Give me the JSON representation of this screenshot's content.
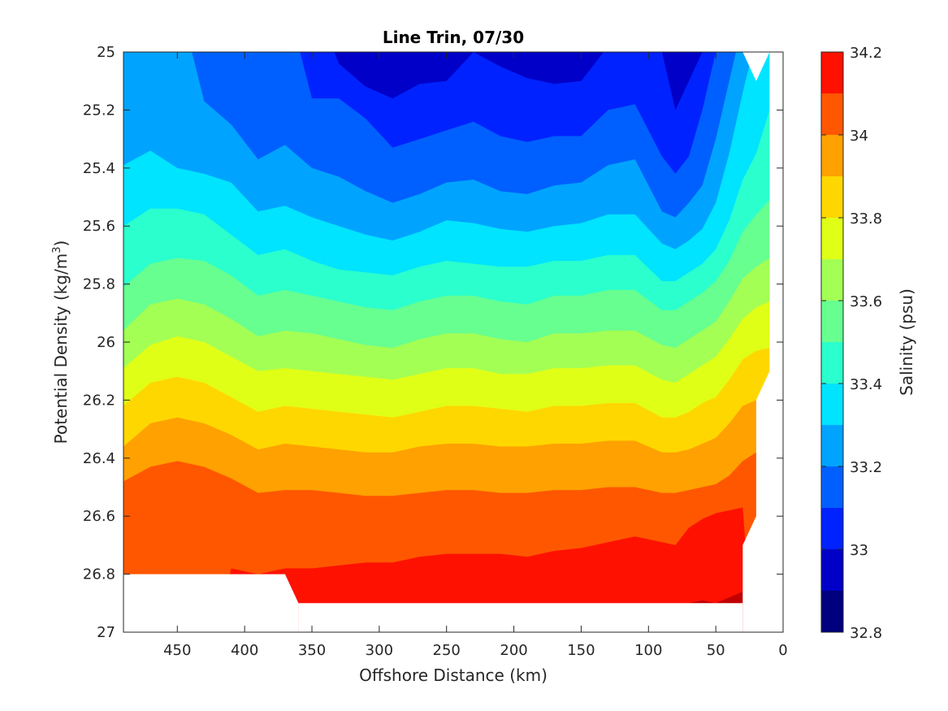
{
  "chart_data": {
    "type": "contourf",
    "title": "Line Trin, 07/30",
    "xlabel": "Offshore Distance (km)",
    "ylabel_main": "Potential Density (kg/m",
    "ylabel_sup": "3",
    "ylabel_close": ")",
    "x_range": [
      490,
      0
    ],
    "x_reversed": true,
    "y_range": [
      25,
      27
    ],
    "y_reversed": true,
    "x_ticks": [
      450,
      400,
      350,
      300,
      250,
      200,
      150,
      100,
      50,
      0
    ],
    "x_tick_labels": [
      "450",
      "400",
      "350",
      "300",
      "250",
      "200",
      "150",
      "100",
      "50",
      "0"
    ],
    "y_ticks": [
      25,
      25.2,
      25.4,
      25.6,
      25.8,
      26,
      26.2,
      26.4,
      26.6,
      26.8,
      27
    ],
    "y_tick_labels": [
      "25",
      "25.2",
      "25.4",
      "25.6",
      "25.8",
      "26",
      "26.2",
      "26.4",
      "26.6",
      "26.8",
      "27"
    ],
    "colorbar": {
      "label": "Salinity (psu)",
      "range": [
        32.8,
        34.2
      ],
      "levels": [
        32.8,
        32.9,
        33.0,
        33.1,
        33.2,
        33.3,
        33.4,
        33.5,
        33.6,
        33.7,
        33.8,
        33.9,
        34.0,
        34.1,
        34.2
      ],
      "colors": [
        "#00007f",
        "#0000c8",
        "#0022ff",
        "#0060ff",
        "#00a4ff",
        "#00e4ff",
        "#2affcd",
        "#66ff90",
        "#a3ff54",
        "#e0ff17",
        "#ffd700",
        "#ffa100",
        "#ff5700",
        "#fe1100",
        "#c00000"
      ],
      "ticks": [
        34.2,
        34,
        33.8,
        33.6,
        33.4,
        33.2,
        33,
        32.8
      ],
      "tick_labels": [
        "34.2",
        "34",
        "33.8",
        "33.6",
        "33.4",
        "33.2",
        "33",
        "32.8"
      ]
    },
    "x_stations": [
      490,
      470,
      450,
      430,
      410,
      390,
      370,
      350,
      330,
      310,
      290,
      270,
      250,
      230,
      210,
      190,
      170,
      150,
      130,
      110,
      90,
      80,
      70,
      60,
      50,
      40,
      30,
      20,
      10
    ],
    "contours": [
      {
        "level": 32.9,
        "depth": [
          24.8,
          24.8,
          24.8,
          24.8,
          24.8,
          24.8,
          24.8,
          24.8,
          24.8,
          24.8,
          24.8,
          24.8,
          24.8,
          24.8,
          24.8,
          24.8,
          24.8,
          24.8,
          24.8,
          24.8,
          24.8,
          24.8,
          24.8,
          24.8,
          24.8,
          24.8,
          24.8,
          24.8,
          24.8
        ]
      },
      {
        "level": 33.0,
        "depth": [
          24.8,
          24.8,
          24.8,
          24.8,
          24.8,
          24.8,
          24.8,
          24.8,
          25.04,
          25.12,
          25.16,
          25.11,
          25.1,
          25.0,
          25.05,
          25.09,
          25.11,
          25.1,
          24.98,
          24.96,
          25.0,
          25.2,
          25.1,
          25.0,
          24.8,
          24.8,
          24.8,
          24.8,
          24.8
        ]
      },
      {
        "level": 33.1,
        "depth": [
          24.8,
          24.8,
          24.8,
          24.8,
          24.8,
          24.8,
          24.8,
          25.16,
          25.16,
          25.23,
          25.33,
          25.3,
          25.27,
          25.24,
          25.29,
          25.31,
          25.29,
          25.29,
          25.2,
          25.18,
          25.36,
          25.42,
          25.36,
          25.2,
          25.0,
          24.8,
          24.8,
          24.8,
          24.8
        ]
      },
      {
        "level": 33.2,
        "depth": [
          24.8,
          24.8,
          24.8,
          25.17,
          25.25,
          25.37,
          25.32,
          25.4,
          25.43,
          25.48,
          25.52,
          25.49,
          25.45,
          25.44,
          25.48,
          25.49,
          25.46,
          25.45,
          25.39,
          25.37,
          25.55,
          25.57,
          25.52,
          25.46,
          25.3,
          25.1,
          24.9,
          24.8,
          24.8
        ]
      },
      {
        "level": 33.3,
        "depth": [
          25.39,
          25.34,
          25.4,
          25.42,
          25.45,
          25.55,
          25.53,
          25.57,
          25.6,
          25.63,
          25.65,
          25.62,
          25.58,
          25.59,
          25.61,
          25.62,
          25.6,
          25.59,
          25.56,
          25.56,
          25.66,
          25.68,
          25.65,
          25.61,
          25.52,
          25.35,
          25.14,
          24.95,
          24.8
        ]
      },
      {
        "level": 33.4,
        "depth": [
          25.6,
          25.54,
          25.54,
          25.56,
          25.63,
          25.7,
          25.68,
          25.72,
          25.75,
          25.76,
          25.77,
          25.74,
          25.72,
          25.73,
          25.74,
          25.74,
          25.72,
          25.72,
          25.7,
          25.7,
          25.79,
          25.79,
          25.76,
          25.73,
          25.68,
          25.58,
          25.44,
          25.35,
          25.2
        ]
      },
      {
        "level": 33.5,
        "depth": [
          25.81,
          25.73,
          25.71,
          25.72,
          25.77,
          25.84,
          25.82,
          25.84,
          25.86,
          25.88,
          25.89,
          25.86,
          25.84,
          25.84,
          25.86,
          25.87,
          25.84,
          25.84,
          25.82,
          25.82,
          25.89,
          25.89,
          25.86,
          25.83,
          25.79,
          25.72,
          25.62,
          25.56,
          25.51
        ]
      },
      {
        "level": 33.6,
        "depth": [
          25.96,
          25.87,
          25.85,
          25.87,
          25.92,
          25.98,
          25.96,
          25.97,
          25.99,
          26.01,
          26.02,
          25.99,
          25.97,
          25.97,
          25.99,
          26.0,
          25.97,
          25.97,
          25.96,
          25.96,
          26.01,
          26.02,
          25.99,
          25.96,
          25.93,
          25.86,
          25.78,
          25.74,
          25.71
        ]
      },
      {
        "level": 33.7,
        "depth": [
          26.09,
          26.01,
          25.98,
          26.0,
          26.05,
          26.1,
          26.09,
          26.1,
          26.11,
          26.12,
          26.13,
          26.11,
          26.09,
          26.09,
          26.11,
          26.11,
          26.09,
          26.09,
          26.08,
          26.08,
          26.13,
          26.14,
          26.11,
          26.08,
          26.05,
          25.99,
          25.92,
          25.88,
          25.86
        ]
      },
      {
        "level": 33.8,
        "depth": [
          26.22,
          26.14,
          26.12,
          26.14,
          26.19,
          26.24,
          26.22,
          26.23,
          26.24,
          26.25,
          26.26,
          26.24,
          26.22,
          26.22,
          26.23,
          26.24,
          26.22,
          26.22,
          26.21,
          26.21,
          26.26,
          26.26,
          26.24,
          26.21,
          26.19,
          26.13,
          26.06,
          26.03,
          26.02
        ]
      },
      {
        "level": 33.9,
        "depth": [
          26.36,
          26.28,
          26.26,
          26.28,
          26.32,
          26.37,
          26.35,
          26.36,
          26.37,
          26.38,
          26.38,
          26.36,
          26.35,
          26.35,
          26.36,
          26.36,
          26.35,
          26.35,
          26.34,
          26.34,
          26.38,
          26.38,
          26.37,
          26.35,
          26.33,
          26.28,
          26.22,
          26.2,
          26.2
        ]
      },
      {
        "level": 34.0,
        "depth": [
          26.48,
          26.43,
          26.41,
          26.43,
          26.47,
          26.52,
          26.51,
          26.51,
          26.52,
          26.53,
          26.53,
          26.52,
          26.51,
          26.51,
          26.52,
          26.52,
          26.51,
          26.51,
          26.5,
          26.5,
          26.52,
          26.52,
          26.51,
          26.5,
          26.49,
          26.46,
          26.41,
          26.38,
          26.38
        ]
      },
      {
        "level": 34.1,
        "depth": [
          27.2,
          27.2,
          27.2,
          27.2,
          26.78,
          26.8,
          26.78,
          26.78,
          26.77,
          26.76,
          26.76,
          26.74,
          26.73,
          26.73,
          26.73,
          26.74,
          26.72,
          26.71,
          26.69,
          26.67,
          26.69,
          26.7,
          26.64,
          26.61,
          26.59,
          26.58,
          26.57,
          27.2,
          27.2
        ]
      },
      {
        "level": 34.2,
        "depth": [
          27.2,
          27.2,
          27.2,
          27.2,
          27.2,
          27.2,
          27.2,
          27.2,
          27.2,
          27.2,
          27.2,
          27.2,
          27.2,
          27.2,
          27.2,
          27.2,
          27.2,
          27.2,
          27.2,
          27.2,
          27.2,
          27.2,
          26.9,
          26.89,
          26.9,
          26.88,
          26.86,
          27.2,
          27.2
        ]
      }
    ],
    "no_data_regions": [
      {
        "name": "bottom-left",
        "points": [
          [
            490,
            26.8
          ],
          [
            370,
            26.8
          ],
          [
            360,
            26.9
          ],
          [
            360,
            27
          ],
          [
            490,
            27
          ]
        ]
      },
      {
        "name": "bottom-below-contours",
        "points": [
          [
            360,
            26.9
          ],
          [
            30,
            26.9
          ],
          [
            30,
            27
          ],
          [
            360,
            27
          ]
        ]
      },
      {
        "name": "right-edge",
        "points": [
          [
            10,
            25
          ],
          [
            20,
            25.1
          ],
          [
            30,
            25
          ],
          [
            10,
            25
          ]
        ]
      },
      {
        "name": "right-strip",
        "points": [
          [
            10,
            26.1
          ],
          [
            20,
            26.2
          ],
          [
            20,
            26.6
          ],
          [
            30,
            26.7
          ],
          [
            30,
            26.9
          ],
          [
            30,
            27
          ],
          [
            0,
            27
          ],
          [
            0,
            25
          ],
          [
            10,
            25
          ],
          [
            10,
            26.1
          ]
        ]
      }
    ]
  }
}
